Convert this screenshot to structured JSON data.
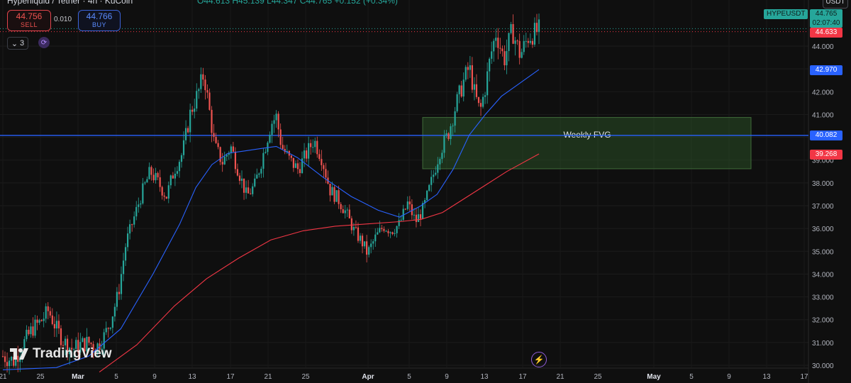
{
  "header": {
    "symbol_title": "Hyperliquid / Tether · 4h · KuCoin",
    "ohlc": "O44.613 H45.139 L44.347 C44.765 +0.152 (+0.34%)"
  },
  "trade": {
    "sell_price": "44.756",
    "sell_label": "SELL",
    "spread": "0.010",
    "buy_price": "44.766",
    "buy_label": "BUY"
  },
  "indicators": {
    "count": "3"
  },
  "brand": {
    "logo_text": "TradingView"
  },
  "badges": {
    "symbol": "HYPEUSDT",
    "currency": "USDT",
    "last_price": "44.765",
    "countdown": "02:07:40",
    "red_price": "44.633",
    "blue_price": "42.970",
    "hline_price": "40.082",
    "red_ma_price": "39.268"
  },
  "colors": {
    "background": "#0f0f0f",
    "up": "#26a69a",
    "down": "#ef5350",
    "ma_blue": "#2962ff",
    "ma_red": "#f23645",
    "fvg_fill": "#1f3a1f",
    "hline": "#2962ff"
  },
  "chart_data": {
    "type": "candlestick",
    "y_ticks": [
      "44.000",
      "43.000",
      "42.000",
      "41.000",
      "40.000",
      "39.000",
      "38.000",
      "37.000",
      "36.000",
      "35.000",
      "34.000",
      "33.000",
      "32.000",
      "31.000",
      "30.000"
    ],
    "ylim": [
      29.9,
      45.6
    ],
    "x_ticks": [
      "21",
      "25",
      "Mar",
      "5",
      "9",
      "13",
      "17",
      "21",
      "25",
      "Apr",
      "5",
      "9",
      "13",
      "17",
      "21",
      "25",
      "May",
      "5",
      "9",
      "13",
      "17"
    ],
    "annotation": {
      "label": "Weekly FVG",
      "price_top": 40.87,
      "price_bottom": 38.62
    },
    "horizontal_line": {
      "price": 40.082
    },
    "price_path": [
      {
        "t": 0.0,
        "p": 30.4
      },
      {
        "t": 0.02,
        "p": 30.2
      },
      {
        "t": 0.04,
        "p": 31.0
      },
      {
        "t": 0.055,
        "p": 31.6
      },
      {
        "t": 0.07,
        "p": 31.9
      },
      {
        "t": 0.085,
        "p": 32.4
      },
      {
        "t": 0.1,
        "p": 31.6
      },
      {
        "t": 0.115,
        "p": 31.0
      },
      {
        "t": 0.13,
        "p": 30.7
      },
      {
        "t": 0.145,
        "p": 30.9
      },
      {
        "t": 0.16,
        "p": 31.0
      },
      {
        "t": 0.175,
        "p": 30.8
      },
      {
        "t": 0.19,
        "p": 31.3
      },
      {
        "t": 0.2,
        "p": 31.9
      },
      {
        "t": 0.215,
        "p": 33.1
      },
      {
        "t": 0.23,
        "p": 35.4
      },
      {
        "t": 0.245,
        "p": 36.5
      },
      {
        "t": 0.26,
        "p": 37.6
      },
      {
        "t": 0.275,
        "p": 38.5
      },
      {
        "t": 0.29,
        "p": 38.0
      },
      {
        "t": 0.305,
        "p": 37.4
      },
      {
        "t": 0.32,
        "p": 38.6
      },
      {
        "t": 0.335,
        "p": 39.3
      },
      {
        "t": 0.35,
        "p": 41.1
      },
      {
        "t": 0.365,
        "p": 42.0
      },
      {
        "t": 0.375,
        "p": 42.8
      },
      {
        "t": 0.385,
        "p": 41.2
      },
      {
        "t": 0.395,
        "p": 39.6
      },
      {
        "t": 0.41,
        "p": 38.9
      },
      {
        "t": 0.425,
        "p": 39.6
      },
      {
        "t": 0.44,
        "p": 38.5
      },
      {
        "t": 0.455,
        "p": 37.4
      },
      {
        "t": 0.47,
        "p": 37.9
      },
      {
        "t": 0.485,
        "p": 39.2
      },
      {
        "t": 0.5,
        "p": 40.6
      },
      {
        "t": 0.51,
        "p": 40.9
      },
      {
        "t": 0.52,
        "p": 39.6
      },
      {
        "t": 0.535,
        "p": 39.0
      },
      {
        "t": 0.55,
        "p": 38.6
      },
      {
        "t": 0.565,
        "p": 39.2
      },
      {
        "t": 0.58,
        "p": 39.9
      },
      {
        "t": 0.595,
        "p": 39.1
      },
      {
        "t": 0.61,
        "p": 37.7
      },
      {
        "t": 0.625,
        "p": 37.3
      },
      {
        "t": 0.64,
        "p": 36.7
      },
      {
        "t": 0.655,
        "p": 35.9
      },
      {
        "t": 0.67,
        "p": 35.4
      },
      {
        "t": 0.68,
        "p": 34.9
      },
      {
        "t": 0.695,
        "p": 35.6
      },
      {
        "t": 0.71,
        "p": 36.1
      },
      {
        "t": 0.725,
        "p": 35.9
      },
      {
        "t": 0.74,
        "p": 36.2
      },
      {
        "t": 0.755,
        "p": 37.1
      },
      {
        "t": 0.77,
        "p": 36.3
      },
      {
        "t": 0.785,
        "p": 36.9
      },
      {
        "t": 0.8,
        "p": 38.1
      },
      {
        "t": 0.815,
        "p": 39.4
      },
      {
        "t": 0.83,
        "p": 40.1
      },
      {
        "t": 0.845,
        "p": 41.4
      },
      {
        "t": 0.86,
        "p": 42.5
      },
      {
        "t": 0.87,
        "p": 43.1
      },
      {
        "t": 0.88,
        "p": 41.9
      },
      {
        "t": 0.89,
        "p": 41.1
      },
      {
        "t": 0.9,
        "p": 42.2
      },
      {
        "t": 0.91,
        "p": 43.6
      },
      {
        "t": 0.92,
        "p": 44.6
      },
      {
        "t": 0.935,
        "p": 43.4
      },
      {
        "t": 0.95,
        "p": 44.7
      },
      {
        "t": 0.965,
        "p": 43.6
      },
      {
        "t": 0.98,
        "p": 44.4
      },
      {
        "t": 1.0,
        "p": 44.7
      }
    ],
    "series": [
      {
        "name": "",
        "color": "#2962ff",
        "points": [
          [
            0.0,
            29.8
          ],
          [
            0.1,
            29.9
          ],
          [
            0.16,
            30.4
          ],
          [
            0.22,
            31.6
          ],
          [
            0.28,
            34.0
          ],
          [
            0.33,
            36.2
          ],
          [
            0.36,
            37.8
          ],
          [
            0.39,
            38.8
          ],
          [
            0.42,
            39.3
          ],
          [
            0.45,
            39.4
          ],
          [
            0.48,
            39.5
          ],
          [
            0.51,
            39.6
          ],
          [
            0.55,
            39.1
          ],
          [
            0.6,
            38.2
          ],
          [
            0.65,
            37.4
          ],
          [
            0.7,
            36.8
          ],
          [
            0.74,
            36.5
          ],
          [
            0.78,
            37.0
          ],
          [
            0.81,
            37.5
          ],
          [
            0.84,
            38.6
          ],
          [
            0.87,
            40.1
          ],
          [
            0.9,
            41.0
          ],
          [
            0.93,
            41.8
          ],
          [
            0.96,
            42.3
          ],
          [
            1.0,
            42.97
          ]
        ]
      },
      {
        "name": "",
        "color": "#f23645",
        "points": [
          [
            0.18,
            29.7
          ],
          [
            0.25,
            30.9
          ],
          [
            0.32,
            32.6
          ],
          [
            0.38,
            33.8
          ],
          [
            0.44,
            34.7
          ],
          [
            0.5,
            35.5
          ],
          [
            0.56,
            35.9
          ],
          [
            0.62,
            36.1
          ],
          [
            0.68,
            36.2
          ],
          [
            0.74,
            36.3
          ],
          [
            0.78,
            36.4
          ],
          [
            0.82,
            36.7
          ],
          [
            0.86,
            37.3
          ],
          [
            0.9,
            37.9
          ],
          [
            0.94,
            38.5
          ],
          [
            1.0,
            39.27
          ]
        ]
      }
    ]
  }
}
